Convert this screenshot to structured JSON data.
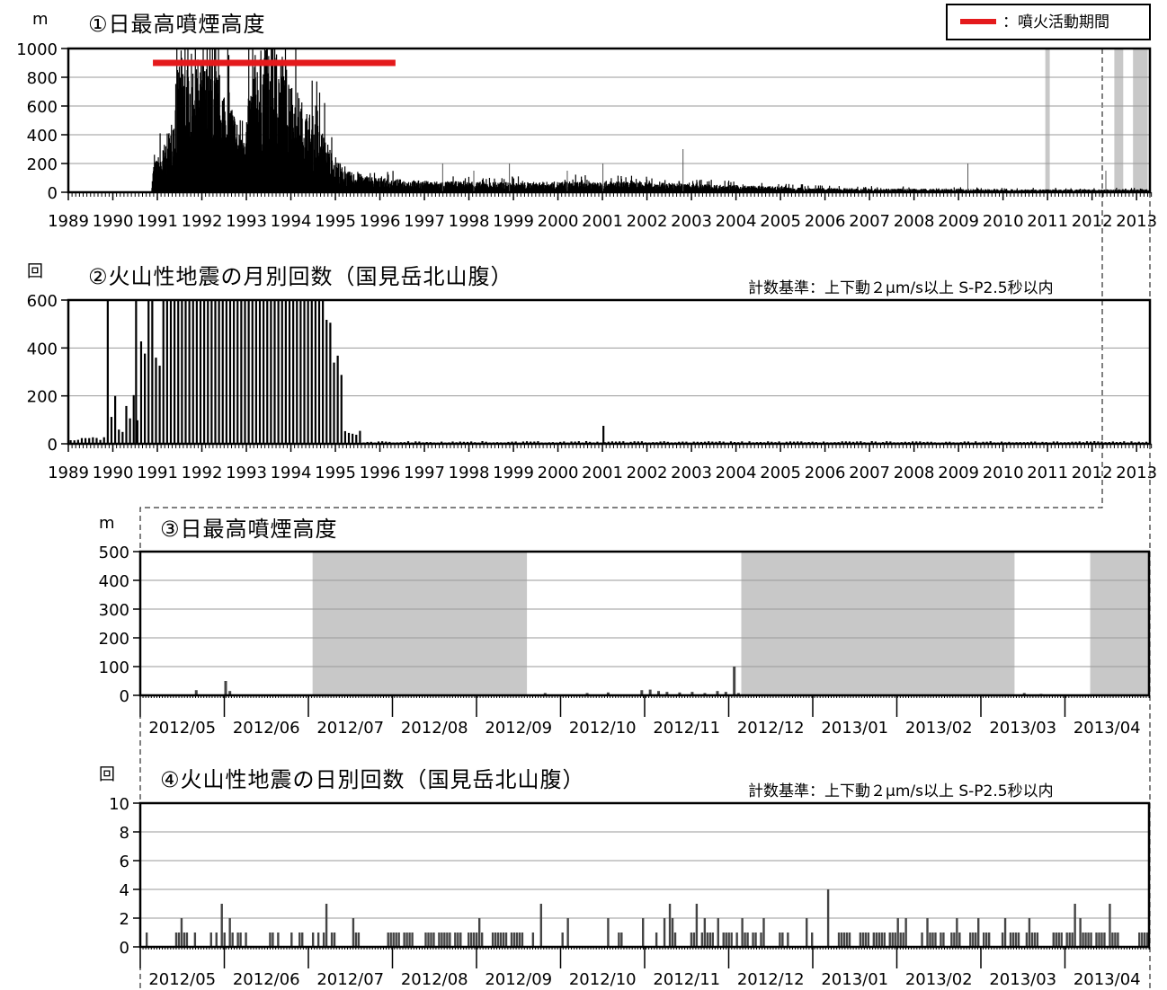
{
  "legend": {
    "label": "：噴火活動期間",
    "color": "#e41a1c"
  },
  "criteria": "計数基準：上下動２μm/s以上 S-P2.5秒以内",
  "chart_data": [
    {
      "id": 1,
      "type": "bar",
      "title": "①日最高噴煙高度",
      "unit": "m",
      "ylim": [
        0,
        1000
      ],
      "yticks": [
        "0",
        "200",
        "400",
        "600",
        "800",
        "1000"
      ],
      "xticks": [
        "1989",
        "1990",
        "1991",
        "1992",
        "1993",
        "1994",
        "1995",
        "1996",
        "1997",
        "1998",
        "1999",
        "2000",
        "2001",
        "2002",
        "2003",
        "2004",
        "2005",
        "2006",
        "2007",
        "2008",
        "2009",
        "2010",
        "2011",
        "2012",
        "2013"
      ],
      "eruption_period": {
        "start": 1990.9,
        "end": 1996.35,
        "y": 900
      },
      "shaded_periods": [
        [
          2010.95,
          2011.05
        ],
        [
          2012.5,
          2012.7
        ],
        [
          2012.92,
          2013.25
        ]
      ],
      "envelope": [
        {
          "x": 1990.85,
          "y": 0
        },
        {
          "x": 1990.9,
          "y": 200
        },
        {
          "x": 1991.1,
          "y": 300
        },
        {
          "x": 1991.3,
          "y": 500
        },
        {
          "x": 1991.5,
          "y": 1000
        },
        {
          "x": 1992.3,
          "y": 900
        },
        {
          "x": 1992.6,
          "y": 700
        },
        {
          "x": 1992.8,
          "y": 500
        },
        {
          "x": 1993.0,
          "y": 600
        },
        {
          "x": 1993.2,
          "y": 1000
        },
        {
          "x": 1993.8,
          "y": 1000
        },
        {
          "x": 1994.0,
          "y": 800
        },
        {
          "x": 1994.3,
          "y": 600
        },
        {
          "x": 1994.6,
          "y": 500
        },
        {
          "x": 1994.9,
          "y": 300
        },
        {
          "x": 1995.2,
          "y": 150
        },
        {
          "x": 1996.0,
          "y": 100
        },
        {
          "x": 1997.0,
          "y": 80
        },
        {
          "x": 1999.0,
          "y": 70
        },
        {
          "x": 2001.0,
          "y": 80
        },
        {
          "x": 2003.0,
          "y": 60
        },
        {
          "x": 2006.0,
          "y": 30
        },
        {
          "x": 2010.0,
          "y": 20
        },
        {
          "x": 2013.3,
          "y": 20
        }
      ],
      "spikes": [
        {
          "x": 1997.4,
          "y": 200
        },
        {
          "x": 1998.1,
          "y": 150
        },
        {
          "x": 1998.9,
          "y": 200
        },
        {
          "x": 2000.2,
          "y": 150
        },
        {
          "x": 2001.0,
          "y": 200
        },
        {
          "x": 2002.8,
          "y": 300
        },
        {
          "x": 2009.2,
          "y": 200
        },
        {
          "x": 2012.3,
          "y": 150
        }
      ]
    },
    {
      "id": 2,
      "type": "bar",
      "title": "②火山性地震の月別回数（国見岳北山腹）",
      "unit": "回",
      "ylim": [
        0,
        600
      ],
      "yticks": [
        "0",
        "200",
        "400",
        "600"
      ],
      "xticks": [
        "1989",
        "1990",
        "1991",
        "1992",
        "1993",
        "1994",
        "1995",
        "1996",
        "1997",
        "1998",
        "1999",
        "2000",
        "2001",
        "2002",
        "2003",
        "2004",
        "2005",
        "2006",
        "2007",
        "2008",
        "2009",
        "2010",
        "2011",
        "2012",
        "2013"
      ],
      "monthly_levels": [
        {
          "from": 1989.0,
          "to": 1989.8,
          "value": 20
        },
        {
          "from": 1989.8,
          "to": 1989.9,
          "value": 570
        },
        {
          "from": 1989.9,
          "to": 1990.0,
          "value": 150
        },
        {
          "from": 1990.0,
          "to": 1990.2,
          "value": 60
        },
        {
          "from": 1990.2,
          "to": 1990.5,
          "value": 160
        },
        {
          "from": 1990.5,
          "to": 1990.7,
          "value": 330
        },
        {
          "from": 1990.7,
          "to": 1991.0,
          "value": 500
        },
        {
          "from": 1991.0,
          "to": 1994.7,
          "value": 620
        },
        {
          "from": 1994.7,
          "to": 1994.9,
          "value": 440
        },
        {
          "from": 1994.9,
          "to": 1995.1,
          "value": 320
        },
        {
          "from": 1995.1,
          "to": 1995.5,
          "value": 40
        },
        {
          "from": 1995.5,
          "to": 2013.3,
          "value": 8
        }
      ],
      "notable": [
        {
          "x": 2001.0,
          "value": 75
        },
        {
          "x": 1990.5,
          "value": 620
        }
      ]
    },
    {
      "id": 3,
      "type": "bar",
      "title": "③日最高噴煙高度",
      "unit": "m",
      "ylim": [
        0,
        500
      ],
      "yticks": [
        "0",
        "100",
        "200",
        "300",
        "400",
        "500"
      ],
      "xticks": [
        "2012/05",
        "2012/06",
        "2012/07",
        "2012/08",
        "2012/09",
        "2012/10",
        "2012/11",
        "2012/12",
        "2013/01",
        "2013/02",
        "2013/03",
        "2013/04"
      ],
      "shaded_periods": [
        [
          2.05,
          4.6
        ],
        [
          7.15,
          10.4
        ],
        [
          11.3,
          12.0
        ]
      ],
      "bars": [
        {
          "x": 0.65,
          "value": 18
        },
        {
          "x": 1.0,
          "value": 50
        },
        {
          "x": 1.05,
          "value": 15
        },
        {
          "x": 4.8,
          "value": 8
        },
        {
          "x": 5.3,
          "value": 8
        },
        {
          "x": 5.55,
          "value": 10
        },
        {
          "x": 5.95,
          "value": 18
        },
        {
          "x": 6.05,
          "value": 20
        },
        {
          "x": 6.15,
          "value": 15
        },
        {
          "x": 6.25,
          "value": 12
        },
        {
          "x": 6.4,
          "value": 10
        },
        {
          "x": 6.55,
          "value": 12
        },
        {
          "x": 6.7,
          "value": 8
        },
        {
          "x": 6.85,
          "value": 15
        },
        {
          "x": 6.95,
          "value": 12
        },
        {
          "x": 7.05,
          "value": 100
        },
        {
          "x": 7.1,
          "value": 8
        },
        {
          "x": 10.5,
          "value": 8
        },
        {
          "x": 10.7,
          "value": 5
        }
      ]
    },
    {
      "id": 4,
      "type": "bar",
      "title": "④火山性地震の日別回数（国見岳北山腹）",
      "unit": "回",
      "ylim": [
        0,
        10
      ],
      "yticks": [
        "0",
        "2",
        "4",
        "6",
        "8",
        "10"
      ],
      "xticks": [
        "2012/05",
        "2012/06",
        "2012/07",
        "2012/08",
        "2012/09",
        "2012/10",
        "2012/11",
        "2012/12",
        "2013/01",
        "2013/02",
        "2013/03",
        "2013/04"
      ],
      "daily_counts": [
        0,
        0,
        1,
        0,
        0,
        0,
        0,
        0,
        0,
        0,
        0,
        0,
        0,
        1,
        1,
        2,
        1,
        1,
        0,
        0,
        1,
        0,
        0,
        0,
        0,
        0,
        1,
        0,
        1,
        0,
        3,
        1,
        0,
        2,
        1,
        0,
        1,
        1,
        0,
        1,
        0,
        0,
        0,
        0,
        0,
        0,
        0,
        0,
        1,
        1,
        0,
        1,
        0,
        0,
        0,
        0,
        1,
        0,
        0,
        1,
        1,
        0,
        0,
        0,
        1,
        0,
        1,
        0,
        1,
        3,
        0,
        1,
        1,
        0,
        0,
        0,
        0,
        0,
        0,
        2,
        1,
        1,
        0,
        0,
        0,
        0,
        0,
        0,
        0,
        0,
        0,
        0,
        1,
        1,
        1,
        1,
        1,
        0,
        1,
        1,
        1,
        1,
        0,
        0,
        0,
        0,
        1,
        1,
        1,
        1,
        0,
        1,
        1,
        1,
        1,
        1,
        0,
        1,
        1,
        1,
        0,
        0,
        1,
        1,
        1,
        1,
        2,
        1,
        0,
        0,
        0,
        1,
        1,
        1,
        1,
        1,
        1,
        0,
        1,
        1,
        1,
        1,
        1,
        0,
        0,
        0,
        1,
        0,
        0,
        3,
        0,
        0,
        0,
        0,
        0,
        0,
        0,
        1,
        0,
        2,
        0,
        0,
        0,
        0,
        0,
        0,
        0,
        0,
        0,
        0,
        0,
        0,
        0,
        0,
        2,
        0,
        0,
        0,
        1,
        1,
        0,
        0,
        0,
        0,
        0,
        0,
        0,
        2,
        0,
        0,
        0,
        0,
        1,
        0,
        0,
        2,
        0,
        3,
        2,
        1,
        0,
        0,
        0,
        0,
        0,
        1,
        1,
        3,
        0,
        1,
        2,
        1,
        1,
        1,
        0,
        2,
        0,
        1,
        1,
        1,
        1,
        0,
        1,
        0,
        2,
        1,
        1,
        0,
        1,
        1,
        0,
        1,
        2,
        0,
        0,
        0,
        0,
        0,
        1,
        1,
        0,
        1,
        0,
        0,
        0,
        0,
        0,
        0,
        2,
        0,
        1,
        0,
        0,
        0,
        0,
        0,
        4,
        0,
        0,
        0,
        1,
        1,
        1,
        1,
        1,
        0,
        0,
        0,
        1,
        1,
        1,
        1,
        0,
        1,
        1,
        1,
        1,
        1,
        0,
        1,
        1,
        1,
        2,
        1,
        1,
        2,
        0,
        0,
        0,
        0,
        0,
        1,
        0,
        2,
        1,
        1,
        1,
        0,
        1,
        1,
        0,
        0,
        1,
        1,
        2,
        1,
        0,
        0,
        0,
        1,
        1,
        1,
        2,
        0,
        1,
        1,
        1,
        0,
        0,
        0,
        0,
        1,
        2,
        0,
        1,
        1,
        1,
        1,
        0,
        0,
        1,
        2,
        1,
        1,
        1,
        0,
        0,
        0,
        0,
        0,
        1,
        1,
        1,
        1,
        0,
        1,
        1,
        1,
        3,
        0,
        2,
        1,
        1,
        1,
        1,
        0,
        1,
        1,
        1,
        1,
        0,
        3,
        1,
        1,
        1,
        0,
        0,
        0,
        0,
        0,
        0,
        0,
        1,
        1,
        1,
        1
      ]
    }
  ]
}
